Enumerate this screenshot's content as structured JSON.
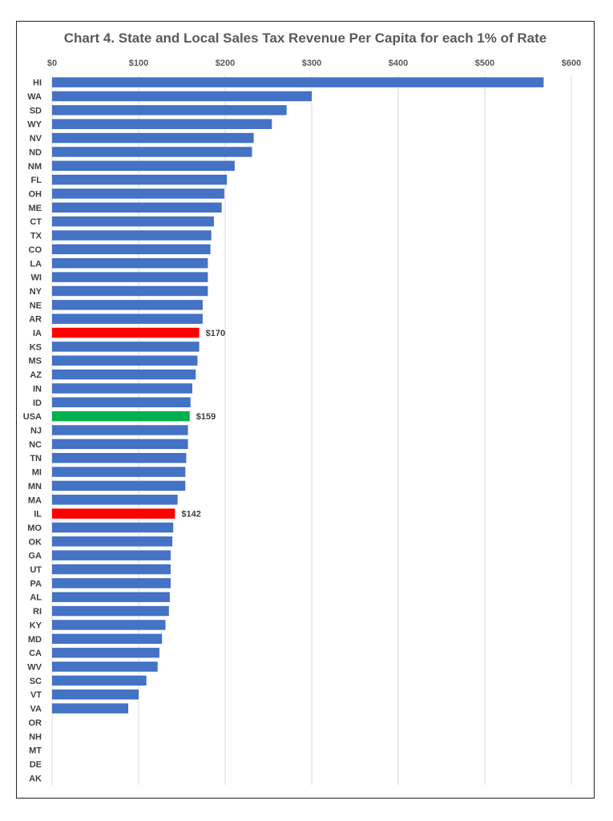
{
  "chart_data": {
    "type": "bar",
    "orientation": "horizontal",
    "title": "Chart 4. State and Local Sales Tax Revenue Per Capita for each 1% of Rate",
    "xlim": [
      0,
      600
    ],
    "x_ticks": [
      0,
      100,
      200,
      300,
      400,
      500,
      600
    ],
    "x_tick_labels": [
      "$0",
      "$100",
      "$200",
      "$300",
      "$400",
      "$500",
      "$600"
    ],
    "x_axis_position": "top",
    "grid": true,
    "colors": {
      "default": "#4472C4",
      "highlight": "#FF0000",
      "usa": "#00B050"
    },
    "categories": [
      "HI",
      "WA",
      "SD",
      "WY",
      "NV",
      "ND",
      "NM",
      "FL",
      "OH",
      "ME",
      "CT",
      "TX",
      "CO",
      "LA",
      "WI",
      "NY",
      "NE",
      "AR",
      "IA",
      "KS",
      "MS",
      "AZ",
      "IN",
      "ID",
      "USA",
      "NJ",
      "NC",
      "TN",
      "MI",
      "MN",
      "MA",
      "IL",
      "MO",
      "OK",
      "GA",
      "UT",
      "PA",
      "AL",
      "RI",
      "KY",
      "MD",
      "CA",
      "WV",
      "SC",
      "VT",
      "VA",
      "OR",
      "NH",
      "MT",
      "DE",
      "AK"
    ],
    "values": [
      568,
      300,
      271,
      254,
      233,
      231,
      211,
      202,
      199,
      196,
      187,
      184,
      183,
      180,
      180,
      180,
      174,
      174,
      170,
      170,
      168,
      166,
      162,
      160,
      159,
      157,
      157,
      155,
      154,
      154,
      145,
      142,
      140,
      139,
      137,
      137,
      137,
      136,
      135,
      131,
      127,
      124,
      122,
      109,
      100,
      88,
      0,
      0,
      0,
      0,
      0
    ],
    "bar_colors": [
      "default",
      "default",
      "default",
      "default",
      "default",
      "default",
      "default",
      "default",
      "default",
      "default",
      "default",
      "default",
      "default",
      "default",
      "default",
      "default",
      "default",
      "default",
      "highlight",
      "default",
      "default",
      "default",
      "default",
      "default",
      "usa",
      "default",
      "default",
      "default",
      "default",
      "default",
      "default",
      "highlight",
      "default",
      "default",
      "default",
      "default",
      "default",
      "default",
      "default",
      "default",
      "default",
      "default",
      "default",
      "default",
      "default",
      "default",
      "default",
      "default",
      "default",
      "default",
      "default"
    ],
    "data_labels": [
      {
        "category": "IA",
        "text": "$170"
      },
      {
        "category": "USA",
        "text": "$159"
      },
      {
        "category": "IL",
        "text": "$142"
      }
    ]
  }
}
